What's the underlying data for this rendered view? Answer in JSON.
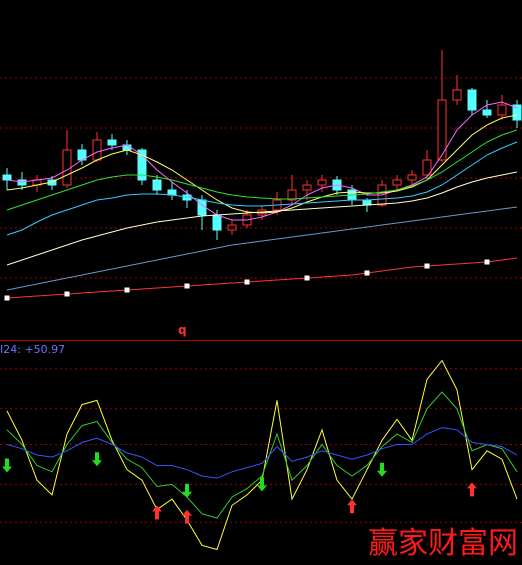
{
  "chart_data": [
    {
      "type": "candlestick",
      "annotation": "q",
      "ylim": [
        0,
        340
      ],
      "gridlines": [
        62,
        112,
        162,
        212,
        262
      ],
      "up_color": "#ff3030",
      "down_color": "#54ffff",
      "candles": [
        [
          165,
          172,
          150,
          160
        ],
        [
          160,
          168,
          150,
          155
        ],
        [
          155,
          165,
          148,
          160
        ],
        [
          160,
          164,
          150,
          155
        ],
        [
          155,
          210,
          152,
          190
        ],
        [
          190,
          196,
          175,
          180
        ],
        [
          180,
          208,
          178,
          200
        ],
        [
          200,
          206,
          190,
          195
        ],
        [
          195,
          200,
          185,
          190
        ],
        [
          190,
          192,
          155,
          160
        ],
        [
          160,
          165,
          145,
          150
        ],
        [
          150,
          158,
          140,
          145
        ],
        [
          145,
          150,
          132,
          140
        ],
        [
          140,
          145,
          110,
          125
        ],
        [
          125,
          130,
          100,
          110
        ],
        [
          110,
          120,
          105,
          115
        ],
        [
          115,
          130,
          112,
          125
        ],
        [
          125,
          135,
          120,
          130
        ],
        [
          130,
          148,
          125,
          140
        ],
        [
          140,
          165,
          135,
          150
        ],
        [
          150,
          160,
          140,
          155
        ],
        [
          155,
          165,
          148,
          160
        ],
        [
          160,
          164,
          145,
          150
        ],
        [
          150,
          155,
          135,
          140
        ],
        [
          140,
          142,
          128,
          135
        ],
        [
          135,
          160,
          133,
          155
        ],
        [
          155,
          165,
          150,
          160
        ],
        [
          160,
          170,
          155,
          165
        ],
        [
          165,
          190,
          160,
          180
        ],
        [
          180,
          290,
          178,
          240
        ],
        [
          240,
          265,
          235,
          250
        ],
        [
          250,
          252,
          225,
          230
        ],
        [
          230,
          240,
          222,
          225
        ],
        [
          225,
          245,
          220,
          235
        ],
        [
          235,
          240,
          212,
          220
        ]
      ],
      "series": [
        {
          "color": "#ff66ff",
          "values": [
            160,
            158,
            160,
            162,
            170,
            180,
            188,
            192,
            195,
            185,
            170,
            158,
            147,
            135,
            125,
            120,
            120,
            123,
            128,
            135,
            145,
            152,
            155,
            152,
            145,
            145,
            150,
            155,
            163,
            185,
            210,
            225,
            235,
            238,
            232
          ]
        },
        {
          "color": "#ffff66",
          "values": [
            150,
            152,
            155,
            158,
            165,
            172,
            180,
            186,
            190,
            185,
            178,
            170,
            160,
            150,
            140,
            132,
            128,
            127,
            128,
            132,
            138,
            143,
            147,
            148,
            147,
            147,
            149,
            153,
            160,
            175,
            190,
            205,
            215,
            222,
            225
          ]
        },
        {
          "color": "#33dd33",
          "values": [
            130,
            135,
            140,
            145,
            150,
            155,
            160,
            163,
            165,
            165,
            163,
            160,
            156,
            152,
            148,
            145,
            143,
            142,
            141,
            141,
            142,
            143,
            144,
            145,
            146,
            148,
            150,
            154,
            160,
            168,
            178,
            188,
            198,
            205,
            210
          ]
        },
        {
          "color": "#33ccff",
          "values": [
            105,
            110,
            118,
            125,
            130,
            135,
            140,
            142,
            145,
            146,
            146,
            145,
            143,
            140,
            137,
            135,
            134,
            134,
            135,
            136,
            137,
            138,
            139,
            140,
            140,
            141,
            142,
            144,
            148,
            155,
            165,
            175,
            185,
            192,
            198
          ]
        },
        {
          "color": "#ffffcc",
          "values": [
            75,
            80,
            85,
            90,
            95,
            100,
            104,
            108,
            112,
            115,
            118,
            120,
            122,
            124,
            125,
            126,
            127,
            128,
            129,
            130,
            131,
            132,
            133,
            134,
            135,
            136,
            137,
            139,
            142,
            147,
            153,
            158,
            162,
            165,
            168
          ]
        },
        {
          "color": "#6699cc",
          "values": [
            50,
            53,
            56,
            59,
            62,
            65,
            68,
            71,
            74,
            77,
            80,
            83,
            86,
            89,
            92,
            95,
            97,
            99,
            101,
            103,
            105,
            107,
            109,
            111,
            113,
            115,
            117,
            119,
            121,
            123,
            125,
            127,
            129,
            131,
            133
          ]
        },
        {
          "color": "#ff3333",
          "markers": true,
          "values": [
            42,
            43,
            44,
            45,
            46,
            47,
            48,
            49,
            50,
            51,
            52,
            53,
            54,
            55,
            56,
            57,
            58,
            59,
            60,
            61,
            62,
            63,
            64,
            65,
            67,
            69,
            71,
            73,
            74,
            75,
            76,
            77,
            78,
            80,
            82
          ]
        }
      ]
    },
    {
      "type": "line",
      "label": "I24: +50.97",
      "ylim": [
        0,
        100
      ],
      "gridlines": [
        18,
        36,
        55,
        72,
        91
      ],
      "series": [
        {
          "color": "#ffff33",
          "values": [
            71,
            57,
            38,
            31,
            60,
            74,
            76,
            57,
            43,
            38,
            24,
            29,
            19,
            7,
            5,
            26,
            31,
            38,
            76,
            29,
            43,
            62,
            38,
            29,
            43,
            57,
            67,
            57,
            86,
            95,
            81,
            43,
            52,
            48,
            29
          ]
        },
        {
          "color": "#33cc33",
          "values": [
            62,
            55,
            45,
            42,
            55,
            64,
            66,
            56,
            48,
            44,
            35,
            36,
            30,
            22,
            20,
            30,
            34,
            40,
            60,
            38,
            45,
            55,
            45,
            40,
            45,
            54,
            60,
            56,
            72,
            80,
            72,
            52,
            55,
            53,
            42
          ]
        },
        {
          "color": "#3355ff",
          "values": [
            55,
            53,
            50,
            49,
            52,
            56,
            58,
            55,
            51,
            49,
            45,
            45,
            43,
            40,
            39,
            42,
            44,
            46,
            54,
            47,
            49,
            52,
            50,
            48,
            50,
            53,
            55,
            55,
            60,
            63,
            62,
            56,
            55,
            54,
            50
          ]
        }
      ],
      "buy_signals": [
        10,
        12,
        23,
        31
      ],
      "sell_signals": [
        0,
        6,
        12,
        17,
        25
      ]
    }
  ],
  "watermark": "赢家财富网"
}
